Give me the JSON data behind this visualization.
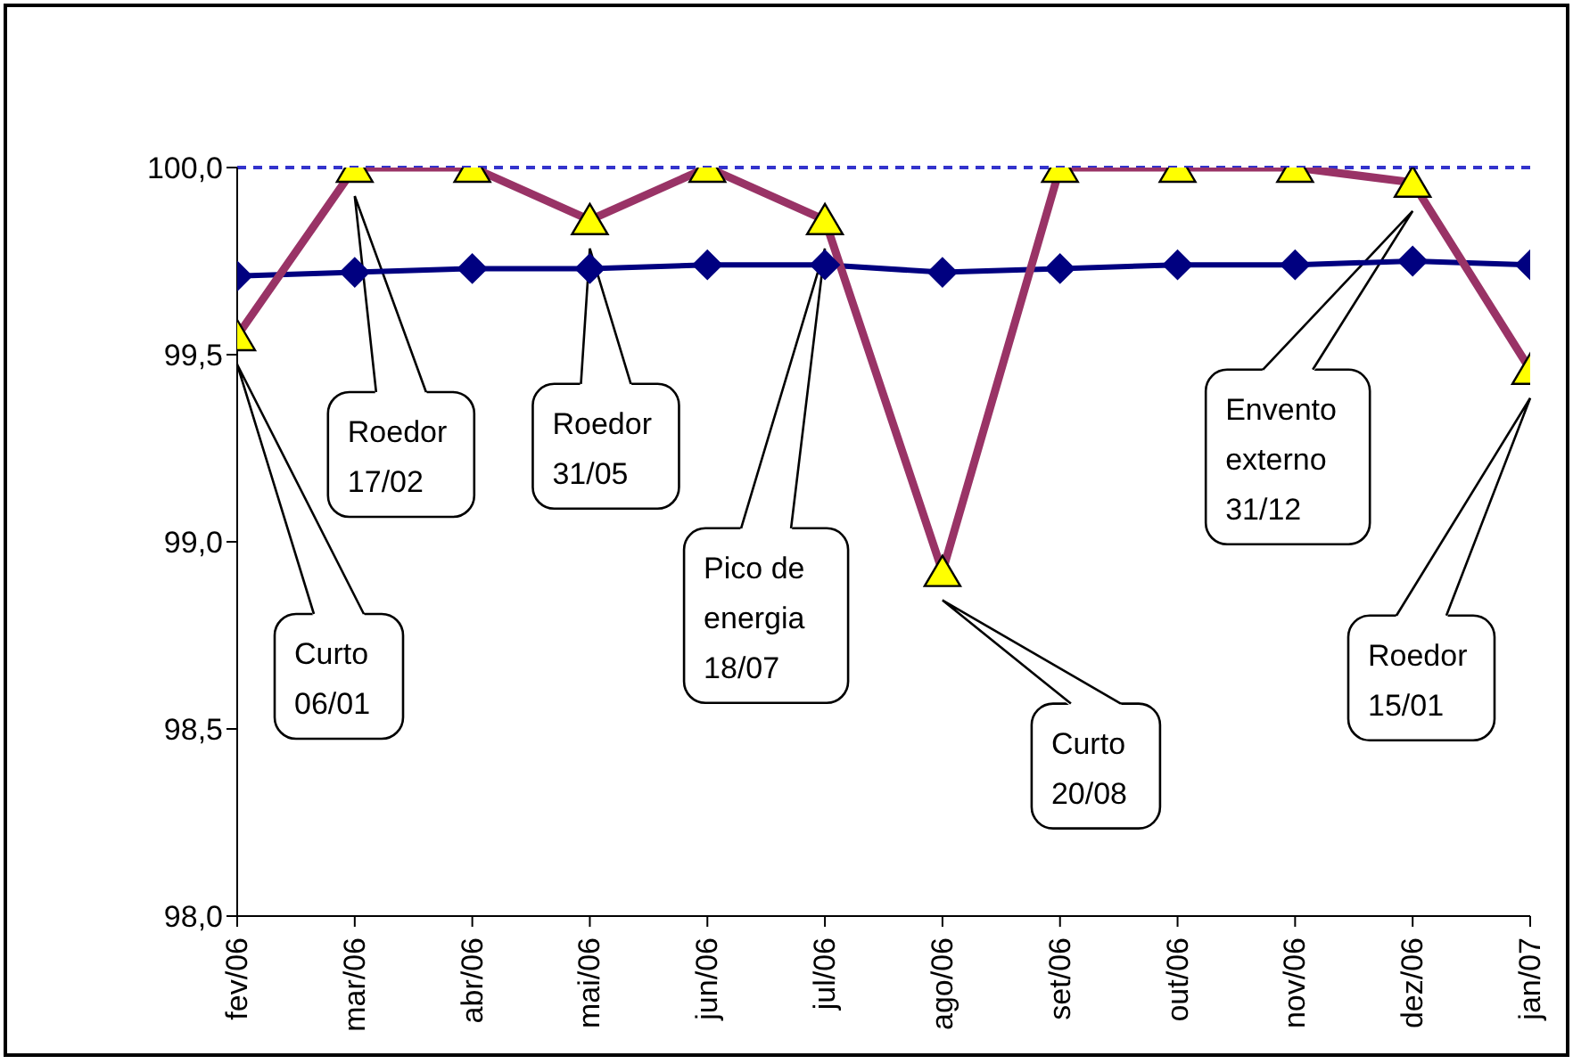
{
  "chart_data": {
    "type": "line",
    "categories": [
      "fev/06",
      "mar/06",
      "abr/06",
      "mai/06",
      "jun/06",
      "jul/06",
      "ago/06",
      "set/06",
      "out/06",
      "nov/06",
      "dez/06",
      "jan/07"
    ],
    "series": [
      {
        "color": "#000080",
        "marker": "diamond",
        "values": [
          99.71,
          99.72,
          99.73,
          99.73,
          99.74,
          99.74,
          99.72,
          99.73,
          99.74,
          99.74,
          99.75,
          99.74
        ]
      },
      {
        "color": "#993366",
        "marker": "triangle",
        "values": [
          99.55,
          100,
          100,
          99.86,
          100,
          99.86,
          98.92,
          100,
          100,
          100,
          99.96,
          99.46
        ]
      }
    ],
    "ylim": [
      98,
      100
    ],
    "yticks": [
      {
        "value": 98,
        "label": "98,0"
      },
      {
        "value": 98.5,
        "label": "98,5"
      },
      {
        "value": 99,
        "label": "99,0"
      },
      {
        "value": 99.5,
        "label": "99,5"
      },
      {
        "value": 100,
        "label": "100,0"
      }
    ],
    "ref_lines": [
      {
        "axis": "y",
        "value": 100,
        "color": "#3333cc",
        "line_style": "dashed"
      }
    ],
    "grid": false,
    "legend": false,
    "annotations": [
      "Curto\n06/01",
      "Roedor\n17/02",
      "Roedor\n31/05",
      "Pico de\nenergia\n18/07",
      "Curto\n20/08",
      "Envento\nexterno\n31/12",
      "Roedor\n15/01"
    ]
  }
}
